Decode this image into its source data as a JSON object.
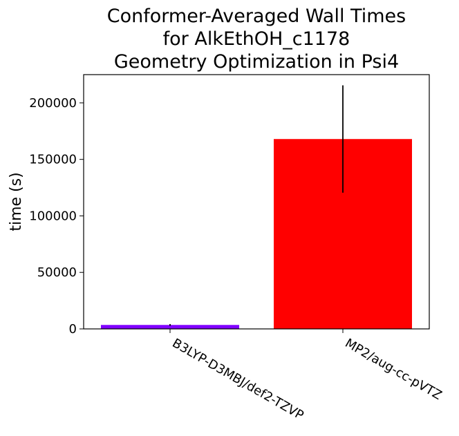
{
  "chart_data": {
    "type": "bar",
    "title_lines": [
      "Conformer-Averaged Wall Times",
      "for AlkEthOH_c1178",
      "Geometry Optimization in Psi4"
    ],
    "ylabel": "time (s)",
    "xlabel": "",
    "categories": [
      "B3LYP-D3MBJ/def2-TZVP",
      "MP2/aug-cc-pVTZ"
    ],
    "values": [
      3500,
      168000
    ],
    "errors": [
      800,
      47500
    ],
    "colors": [
      "#8000ff",
      "#ff0000"
    ],
    "ylim": [
      0,
      225000
    ],
    "yticks": [
      0,
      50000,
      100000,
      150000,
      200000
    ],
    "ytick_labels": [
      "0",
      "50000",
      "100000",
      "150000",
      "200000"
    ],
    "grid": false,
    "legend": "none"
  }
}
